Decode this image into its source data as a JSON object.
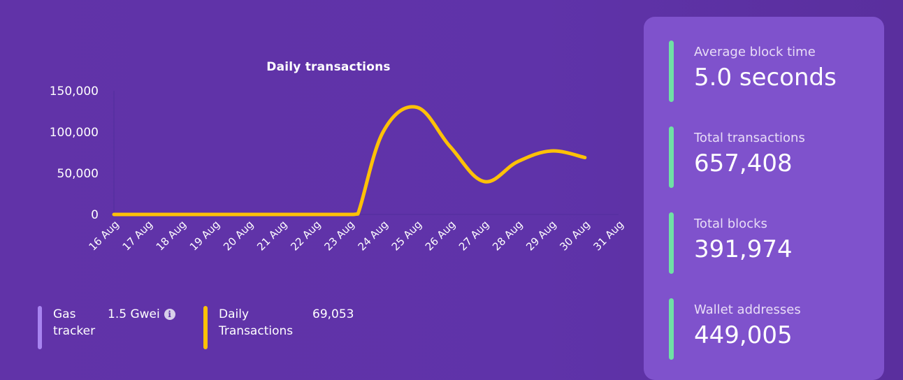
{
  "chart_data": {
    "type": "line",
    "title": "Daily transactions",
    "categories": [
      "16 Aug",
      "17 Aug",
      "18 Aug",
      "19 Aug",
      "20 Aug",
      "21 Aug",
      "22 Aug",
      "23 Aug",
      "24 Aug",
      "25 Aug",
      "26 Aug",
      "27 Aug",
      "28 Aug",
      "29 Aug",
      "30 Aug",
      "31 Aug"
    ],
    "x_numeric": [
      16,
      17,
      18,
      19,
      20,
      21,
      22,
      23,
      24,
      25,
      26,
      27,
      28,
      29,
      30,
      31
    ],
    "series": [
      {
        "color": "#ffc107",
        "x": [
          16,
          17,
          18,
          19,
          20,
          21,
          22,
          23,
          23.25,
          24,
          25,
          26,
          27,
          28,
          29,
          30
        ],
        "values": [
          0,
          0,
          0,
          0,
          0,
          0,
          0,
          0,
          500,
          100000,
          130000,
          82000,
          40000,
          64000,
          77000,
          69053
        ]
      }
    ],
    "yticks": [
      "0",
      "50,000",
      "100,000",
      "150,000"
    ],
    "ylim": [
      0,
      150000
    ],
    "grid": false
  },
  "gas": {
    "label": "Gas tracker",
    "value": "1.5 Gwei",
    "bar_color": "#a884f0"
  },
  "daily": {
    "label": "Daily Transactions",
    "value": "69,053",
    "bar_color": "#ffc107"
  },
  "stats": {
    "avg_block_time": {
      "label": "Average block time",
      "value": "5.0 seconds"
    },
    "total_transactions": {
      "label": "Total transactions",
      "value": "657,408"
    },
    "total_blocks": {
      "label": "Total blocks",
      "value": "391,974"
    },
    "wallet_addresses": {
      "label": "Wallet addresses",
      "value": "449,005"
    }
  },
  "colors": {
    "accent": "#6fe0a5",
    "background": "#5f33a9",
    "panel": "#7f52cc",
    "line": "#ffc107"
  }
}
